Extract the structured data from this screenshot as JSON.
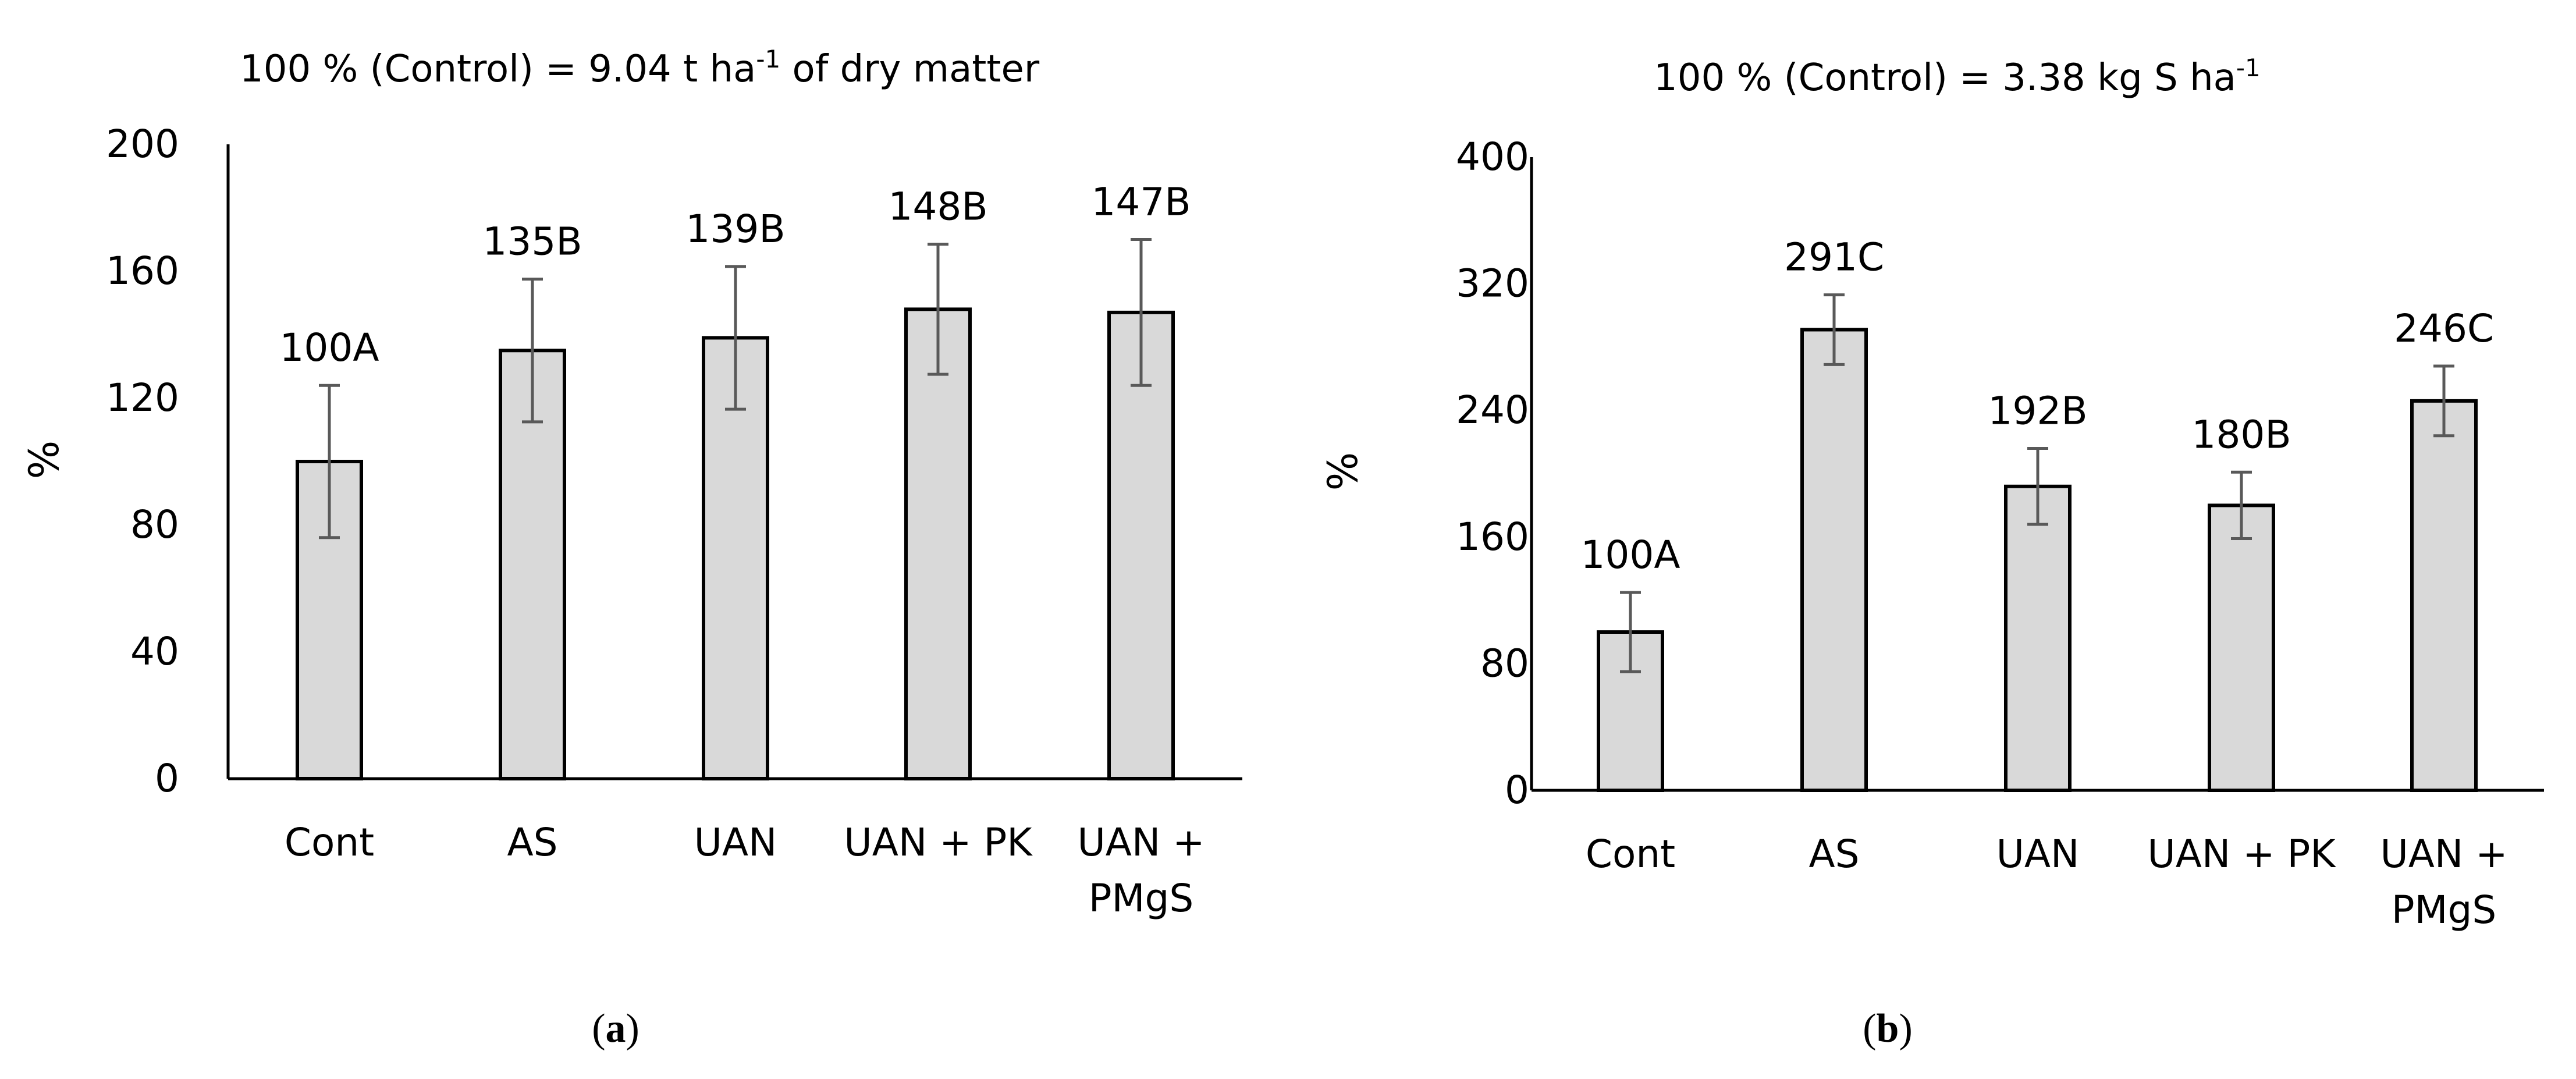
{
  "colors": {
    "bar_fill": "#d9d9d9",
    "bar_stroke": "#000000",
    "error_bar": "#595959",
    "axis": "#000000",
    "text": "#000000"
  },
  "chart_data": [
    {
      "id": "a",
      "type": "bar",
      "panel_label": "a",
      "title": "100 % (Control) = 9.04 t ha",
      "title_superscript": "-1",
      "title_suffix": " of dry matter",
      "xlabel": "",
      "ylabel": "%",
      "ylim": [
        0,
        200
      ],
      "yticks": [
        0,
        40,
        80,
        120,
        160,
        200
      ],
      "ytick_labels": [
        "0",
        "40",
        "80",
        "120",
        "160",
        "200"
      ],
      "categories": [
        [
          "Cont"
        ],
        [
          "AS"
        ],
        [
          "UAN"
        ],
        [
          "UAN + PK"
        ],
        [
          "UAN +",
          "PMgS"
        ]
      ],
      "values": [
        100,
        135,
        139,
        148,
        147
      ],
      "errors": [
        24,
        22.5,
        22.5,
        20.5,
        23
      ],
      "data_labels": [
        "100A",
        "135B",
        "139B",
        "148B",
        "147B"
      ],
      "grid": false
    },
    {
      "id": "b",
      "type": "bar",
      "panel_label": "b",
      "title": "100 % (Control) = 3.38 kg S ha",
      "title_superscript": "-1",
      "title_suffix": "",
      "xlabel": "",
      "ylabel": "%",
      "ylim": [
        0,
        400
      ],
      "yticks": [
        0,
        80,
        160,
        240,
        320,
        400
      ],
      "ytick_labels": [
        "0",
        "80",
        "160",
        "240",
        "320",
        "400"
      ],
      "categories": [
        [
          "Cont"
        ],
        [
          "AS"
        ],
        [
          "UAN"
        ],
        [
          "UAN + PK"
        ],
        [
          "UAN +",
          "PMgS"
        ]
      ],
      "values": [
        100,
        291,
        192,
        180,
        246
      ],
      "errors": [
        25,
        22,
        24,
        21,
        22
      ],
      "data_labels": [
        "100A",
        "291C",
        "192B",
        "180B",
        "246C"
      ],
      "grid": false
    }
  ]
}
